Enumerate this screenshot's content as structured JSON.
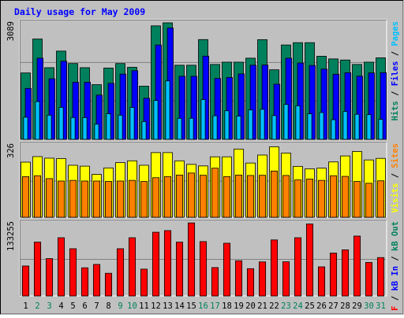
{
  "colors": {
    "background": "#C0C0C0",
    "title": "#0000FF",
    "hits": "#00805C",
    "files": "#0000FF",
    "pages": "#00C0FF",
    "visits": "#FFFF00",
    "sites": "#FF8000",
    "kbytes": "#FF0000",
    "day_weekday": "#000000",
    "day_weekend": "#00805C"
  },
  "chart_data": {
    "type": "bar",
    "title": "Daily usage for May 2009",
    "x": [
      "1",
      "2",
      "3",
      "4",
      "5",
      "6",
      "7",
      "8",
      "9",
      "10",
      "11",
      "12",
      "13",
      "14",
      "15",
      "16",
      "17",
      "18",
      "19",
      "20",
      "21",
      "22",
      "23",
      "24",
      "25",
      "26",
      "27",
      "28",
      "29",
      "30",
      "31"
    ],
    "weekend_days": [
      "2",
      "3",
      "9",
      "10",
      "16",
      "17",
      "23",
      "24",
      "30",
      "31"
    ],
    "panels": [
      {
        "id": "hits_panel",
        "ymax_label": "3089",
        "ylim": [
          0,
          3089
        ],
        "labels": [
          {
            "text": "Hits",
            "color": "#00805C"
          },
          {
            "text": "Files",
            "color": "#0000FF"
          },
          {
            "text": "Pages",
            "color": "#00C0FF"
          }
        ],
        "series": [
          {
            "name": "Hits",
            "color": "#00805C",
            "values": [
              1760,
              2660,
              1900,
              2340,
              2010,
              1900,
              1450,
              1890,
              2010,
              1910,
              1410,
              3009,
              3089,
              1965,
              1965,
              2645,
              1986,
              2046,
              2046,
              2152,
              2643,
              1844,
              2502,
              2563,
              2563,
              2203,
              2132,
              2103,
              1986,
              2046,
              2161
            ]
          },
          {
            "name": "Files",
            "color": "#0000FF",
            "values": [
              1350,
              2152,
              1605,
              2070,
              1513,
              1513,
              1173,
              1484,
              1730,
              1820,
              1089,
              2502,
              2951,
              1671,
              1671,
              2206,
              1614,
              1640,
              1734,
              1966,
              1970,
              1462,
              2150,
              2023,
              1959,
              1862,
              1726,
              1765,
              1675,
              1760,
              1767
            ]
          },
          {
            "name": "Pages",
            "color": "#00C0FF",
            "values": [
              586,
              1000,
              640,
              848,
              577,
              577,
              400,
              680,
              640,
              845,
              470,
              1030,
              1550,
              557,
              557,
              1054,
              625,
              757,
              616,
              780,
              795,
              630,
              925,
              890,
              678,
              710,
              520,
              740,
              663,
              655,
              530
            ]
          }
        ]
      },
      {
        "id": "visits_panel",
        "ymax_label": "326",
        "ylim": [
          0,
          326
        ],
        "labels": [
          {
            "text": "Visits",
            "color": "#FFFF00"
          },
          {
            "text": "Sites",
            "color": "#FF8000"
          }
        ],
        "series": [
          {
            "name": "Visits",
            "color": "#FFFF00",
            "values": [
              248,
              273,
              266,
              264,
              234,
              230,
              193,
              222,
              246,
              254,
              234,
              291,
              291,
              254,
              238,
              231,
              272,
              272,
              307,
              244,
              280,
              317,
              289,
              229,
              218,
              221,
              249,
              276,
              296,
              258,
              265
            ]
          },
          {
            "name": "Sites",
            "color": "#FF8000",
            "values": [
              183,
              187,
              174,
              163,
              166,
              163,
              163,
              161,
              163,
              166,
              161,
              178,
              183,
              190,
              199,
              189,
              221,
              183,
              190,
              188,
              189,
              208,
              188,
              168,
              172,
              166,
              187,
              184,
              161,
              153,
              164
            ]
          }
        ]
      },
      {
        "id": "kbytes_panel",
        "ymax_label": "133255",
        "ylim": [
          0,
          133255
        ],
        "labels": [
          {
            "text": "kB F",
            "color": "#FF0000"
          },
          {
            "text": "kB In",
            "color": "#0000FF"
          },
          {
            "text": "kB Out",
            "color": "#00805C"
          }
        ],
        "series": [
          {
            "name": "KBytes",
            "color": "#FF0000",
            "values": [
              54500,
              98000,
              68000,
              106000,
              86000,
              51300,
              57400,
              41300,
              86000,
              106000,
              48800,
              116000,
              119000,
              98000,
              133000,
              99000,
              51700,
              96000,
              64100,
              49700,
              62000,
              102000,
              62200,
              106000,
              131000,
              53000,
              78000,
              84000,
              109000,
              61000,
              69900
            ]
          }
        ]
      }
    ]
  }
}
